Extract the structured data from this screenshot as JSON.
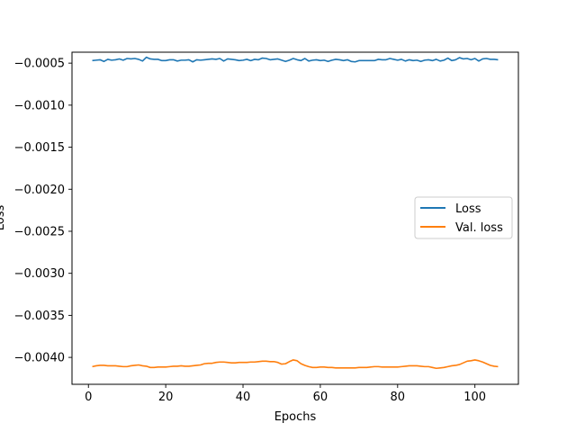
{
  "chart_data": {
    "type": "line",
    "title": "",
    "xlabel": "Epochs",
    "ylabel": "Loss",
    "xlim": [
      -4.25,
      111.25
    ],
    "ylim": [
      -0.00432,
      -0.00037
    ],
    "xticks": [
      0,
      20,
      40,
      60,
      80,
      100
    ],
    "xtick_labels": [
      "0",
      "20",
      "40",
      "60",
      "80",
      "100"
    ],
    "yticks": [
      -0.0005,
      -0.001,
      -0.0015,
      -0.002,
      -0.0025,
      -0.003,
      -0.0035,
      -0.004
    ],
    "ytick_labels": [
      "−0.0005",
      "−0.0010",
      "−0.0015",
      "−0.0020",
      "−0.0025",
      "−0.0030",
      "−0.0035",
      "−0.0040"
    ],
    "grid": false,
    "legend_position": "center-right",
    "series": [
      {
        "name": "Loss",
        "color": "#1f77b4",
        "x": [
          1,
          2,
          3,
          4,
          5,
          6,
          7,
          8,
          9,
          10,
          11,
          12,
          13,
          14,
          15,
          16,
          17,
          18,
          19,
          20,
          21,
          22,
          23,
          24,
          25,
          26,
          27,
          28,
          29,
          30,
          31,
          32,
          33,
          34,
          35,
          36,
          37,
          38,
          39,
          40,
          41,
          42,
          43,
          44,
          45,
          46,
          47,
          48,
          49,
          50,
          51,
          52,
          53,
          54,
          55,
          56,
          57,
          58,
          59,
          60,
          61,
          62,
          63,
          64,
          65,
          66,
          67,
          68,
          69,
          70,
          71,
          72,
          73,
          74,
          75,
          76,
          77,
          78,
          79,
          80,
          81,
          82,
          83,
          84,
          85,
          86,
          87,
          88,
          89,
          90,
          91,
          92,
          93,
          94,
          95,
          96,
          97,
          98,
          99,
          100,
          101,
          102,
          103,
          104,
          105,
          106
        ],
        "values": [
          -0.00047,
          -0.000465,
          -0.00046,
          -0.00048,
          -0.000455,
          -0.000465,
          -0.00046,
          -0.00045,
          -0.000465,
          -0.000445,
          -0.00045,
          -0.000445,
          -0.000455,
          -0.000475,
          -0.00043,
          -0.00045,
          -0.000455,
          -0.000455,
          -0.00047,
          -0.00047,
          -0.00046,
          -0.00046,
          -0.000475,
          -0.000465,
          -0.000465,
          -0.00046,
          -0.000485,
          -0.00046,
          -0.000465,
          -0.00046,
          -0.000455,
          -0.00045,
          -0.000455,
          -0.000445,
          -0.000475,
          -0.00045,
          -0.000455,
          -0.00046,
          -0.00047,
          -0.000465,
          -0.000455,
          -0.00047,
          -0.000455,
          -0.00046,
          -0.00044,
          -0.000445,
          -0.00046,
          -0.000455,
          -0.00045,
          -0.000465,
          -0.00048,
          -0.000465,
          -0.000445,
          -0.00046,
          -0.00047,
          -0.000445,
          -0.000475,
          -0.000465,
          -0.00046,
          -0.00047,
          -0.000465,
          -0.00048,
          -0.000465,
          -0.000455,
          -0.00046,
          -0.00047,
          -0.00046,
          -0.00048,
          -0.000485,
          -0.00047,
          -0.00047,
          -0.00047,
          -0.00047,
          -0.00047,
          -0.000455,
          -0.00046,
          -0.00046,
          -0.000445,
          -0.000455,
          -0.000465,
          -0.000455,
          -0.000475,
          -0.00046,
          -0.00047,
          -0.000465,
          -0.00048,
          -0.000465,
          -0.00046,
          -0.00047,
          -0.000455,
          -0.000475,
          -0.000465,
          -0.00044,
          -0.00047,
          -0.00046,
          -0.000435,
          -0.00045,
          -0.000445,
          -0.00046,
          -0.000445,
          -0.000475,
          -0.00045,
          -0.000445,
          -0.000455,
          -0.000455,
          -0.00046
        ]
      },
      {
        "name": "Val. loss",
        "color": "#ff7f0e",
        "x": [
          1,
          2,
          3,
          4,
          5,
          6,
          7,
          8,
          9,
          10,
          11,
          12,
          13,
          14,
          15,
          16,
          17,
          18,
          19,
          20,
          21,
          22,
          23,
          24,
          25,
          26,
          27,
          28,
          29,
          30,
          31,
          32,
          33,
          34,
          35,
          36,
          37,
          38,
          39,
          40,
          41,
          42,
          43,
          44,
          45,
          46,
          47,
          48,
          49,
          50,
          51,
          52,
          53,
          54,
          55,
          56,
          57,
          58,
          59,
          60,
          61,
          62,
          63,
          64,
          65,
          66,
          67,
          68,
          69,
          70,
          71,
          72,
          73,
          74,
          75,
          76,
          77,
          78,
          79,
          80,
          81,
          82,
          83,
          84,
          85,
          86,
          87,
          88,
          89,
          90,
          91,
          92,
          93,
          94,
          95,
          96,
          97,
          98,
          99,
          100,
          101,
          102,
          103,
          104,
          105,
          106
        ],
        "values": [
          -0.00411,
          -0.0041,
          -0.004095,
          -0.004095,
          -0.0041,
          -0.0041,
          -0.0041,
          -0.004105,
          -0.00411,
          -0.00411,
          -0.0041,
          -0.004095,
          -0.00409,
          -0.0041,
          -0.004105,
          -0.00412,
          -0.00412,
          -0.004115,
          -0.004115,
          -0.004115,
          -0.00411,
          -0.004105,
          -0.004105,
          -0.0041,
          -0.004105,
          -0.004105,
          -0.0041,
          -0.004095,
          -0.00409,
          -0.004075,
          -0.00407,
          -0.00407,
          -0.00406,
          -0.004055,
          -0.004055,
          -0.00406,
          -0.004065,
          -0.004065,
          -0.00406,
          -0.00406,
          -0.00406,
          -0.004055,
          -0.004055,
          -0.00405,
          -0.004045,
          -0.004045,
          -0.00405,
          -0.00405,
          -0.00406,
          -0.00408,
          -0.004075,
          -0.00405,
          -0.00403,
          -0.00404,
          -0.004075,
          -0.004095,
          -0.00411,
          -0.00412,
          -0.00412,
          -0.004115,
          -0.004115,
          -0.00412,
          -0.00412,
          -0.004125,
          -0.004125,
          -0.004125,
          -0.004125,
          -0.004125,
          -0.004125,
          -0.00412,
          -0.00412,
          -0.00412,
          -0.004115,
          -0.00411,
          -0.00411,
          -0.004115,
          -0.004115,
          -0.004115,
          -0.004115,
          -0.004115,
          -0.00411,
          -0.004105,
          -0.0041,
          -0.0041,
          -0.0041,
          -0.004105,
          -0.00411,
          -0.00411,
          -0.00412,
          -0.00413,
          -0.004125,
          -0.00412,
          -0.00411,
          -0.0041,
          -0.004095,
          -0.004085,
          -0.004065,
          -0.004045,
          -0.00404,
          -0.00403,
          -0.00404,
          -0.004055,
          -0.004075,
          -0.004095,
          -0.004105,
          -0.00411
        ]
      }
    ]
  }
}
